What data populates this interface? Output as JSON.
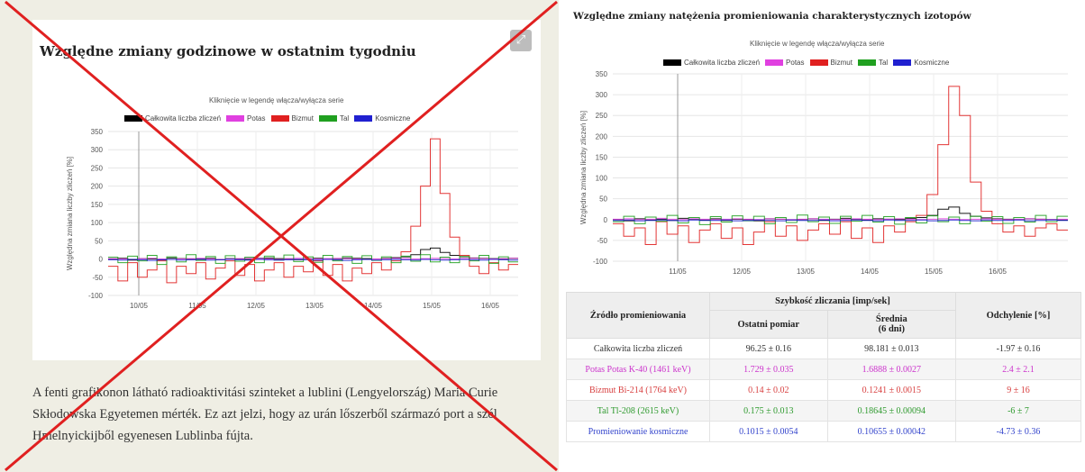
{
  "left": {
    "title": "Względne zmiany godzinowe w ostatnim tygodniu",
    "expand_icon": "expand-icon",
    "caption": "A fenti grafikonon látható radioaktivitási szinteket a lublini (Lengyelország) Maria Curie Skłodowska Egyetemen mérték. Ez azt jelzi, hogy az urán lőszerből származó port a szél Hmelnyickijből egyenesen Lublinba fújta.",
    "overlay": "red-x-cross"
  },
  "right": {
    "title": "Względne zmiany natężenia promieniowania charakterystycznych izotopów"
  },
  "chart_data": [
    {
      "type": "line",
      "title": "",
      "subtitle": "Kliknięcie w legendę włącza/wyłącza serie",
      "ylabel": "Względna zmiana liczby zliczeń [%]",
      "xlabel": "",
      "ylim": [
        -100,
        350
      ],
      "yticks": [
        "350",
        "300",
        "250",
        "200",
        "150",
        "100",
        "50",
        "0",
        "-50",
        "-100"
      ],
      "x_ticks": [
        "10/05",
        "11/05",
        "12/05",
        "13/05",
        "14/05",
        "15/05",
        "16/05"
      ],
      "legend_position": "top",
      "grid": true,
      "series": [
        {
          "name": "Całkowita liczba zliczeń",
          "color": "#000000",
          "values": [
            0,
            2,
            -3,
            1,
            0,
            -2,
            3,
            1,
            -1,
            0,
            2,
            -2,
            1,
            0,
            -1,
            2,
            3,
            1,
            0,
            -2,
            1,
            2,
            0,
            -1,
            3,
            2,
            1,
            0,
            2,
            4,
            6,
            12,
            26,
            30,
            18,
            10,
            6,
            3,
            2,
            1,
            0,
            2
          ]
        },
        {
          "name": "Potas",
          "color": "#e040e0",
          "values": [
            1,
            0,
            -1,
            1,
            2,
            0,
            -1,
            0,
            1,
            2,
            0,
            -1,
            0,
            1,
            2,
            1,
            0,
            -1,
            1,
            2,
            1,
            0,
            1,
            2,
            1,
            0,
            -1,
            0,
            1,
            2,
            1,
            0,
            1,
            2,
            1,
            0,
            1,
            2,
            1,
            0,
            1,
            2
          ]
        },
        {
          "name": "Bizmut",
          "color": "#e02020",
          "values": [
            -20,
            -60,
            -10,
            -50,
            -30,
            -5,
            -65,
            -20,
            -40,
            -10,
            -55,
            -25,
            -5,
            -45,
            -15,
            -60,
            -30,
            -10,
            -50,
            -20,
            -35,
            -5,
            -45,
            -15,
            -60,
            -25,
            -40,
            -10,
            -30,
            -5,
            20,
            90,
            200,
            330,
            180,
            60,
            10,
            -20,
            -40,
            -10,
            -30,
            -15
          ]
        },
        {
          "name": "Tal",
          "color": "#20a020",
          "values": [
            5,
            -10,
            8,
            -5,
            10,
            -15,
            6,
            -8,
            12,
            -4,
            7,
            -12,
            9,
            -6,
            5,
            -10,
            8,
            -3,
            11,
            -7,
            6,
            -9,
            10,
            -5,
            7,
            -12,
            9,
            -4,
            6,
            -10,
            8,
            -6,
            12,
            -8,
            5,
            -10,
            7,
            -5,
            10,
            -12,
            6,
            -8
          ]
        },
        {
          "name": "Kosmiczne",
          "color": "#2020d0",
          "values": [
            -2,
            -3,
            -1,
            -2,
            -4,
            -2,
            -1,
            -3,
            -2,
            -1,
            -3,
            -2,
            -1,
            -2,
            -3,
            -1,
            -2,
            -3,
            -2,
            -1,
            -2,
            -3,
            -1,
            -2,
            -4,
            -2,
            -1,
            -3,
            -2,
            -1,
            -2,
            -3,
            -1,
            -2,
            -3,
            -2,
            -1,
            -2,
            -3,
            -1,
            -2,
            -3
          ]
        }
      ]
    },
    {
      "type": "line",
      "title": "",
      "subtitle": "Kliknięcie w legendę włącza/wyłącza serie",
      "ylabel": "Względna zmiana liczby zliczeń [%]",
      "xlabel": "",
      "ylim": [
        -100,
        350
      ],
      "yticks": [
        "350",
        "300",
        "250",
        "200",
        "150",
        "100",
        "50",
        "0",
        "-50",
        "-100"
      ],
      "x_ticks": [
        "11/05",
        "12/05",
        "13/05",
        "14/05",
        "15/05",
        "16/05"
      ],
      "legend_position": "top",
      "grid": true,
      "series": [
        {
          "name": "Całkowita liczba zliczeń",
          "color": "#000000",
          "values": [
            0,
            -3,
            2,
            -1,
            1,
            -2,
            3,
            0,
            -1,
            2,
            -2,
            1,
            0,
            -3,
            2,
            1,
            -1,
            0,
            2,
            -2,
            1,
            3,
            0,
            -1,
            2,
            1,
            0,
            3,
            5,
            10,
            25,
            30,
            15,
            8,
            4,
            2,
            1,
            0,
            2,
            1,
            0,
            -1
          ]
        },
        {
          "name": "Potas",
          "color": "#e040e0",
          "values": [
            1,
            2,
            0,
            1,
            3,
            1,
            0,
            2,
            1,
            0,
            1,
            2,
            1,
            0,
            2,
            1,
            0,
            1,
            2,
            1,
            0,
            1,
            2,
            1,
            0,
            1,
            2,
            1,
            0,
            1,
            2,
            1,
            0,
            1,
            2,
            1,
            0,
            1,
            2,
            1,
            0,
            1
          ]
        },
        {
          "name": "Bizmut",
          "color": "#e02020",
          "values": [
            -10,
            -40,
            -20,
            -60,
            -5,
            -35,
            -15,
            -55,
            -25,
            -10,
            -45,
            -20,
            -60,
            -30,
            -5,
            -40,
            -15,
            -50,
            -25,
            -10,
            -35,
            -5,
            -45,
            -20,
            -55,
            -15,
            -30,
            -5,
            10,
            60,
            180,
            320,
            250,
            90,
            20,
            -10,
            -30,
            -15,
            -40,
            -20,
            -10,
            -25
          ]
        },
        {
          "name": "Tal",
          "color": "#20a020",
          "values": [
            -5,
            8,
            -10,
            6,
            -4,
            10,
            -8,
            5,
            -12,
            7,
            -6,
            9,
            -3,
            8,
            -10,
            5,
            -7,
            11,
            -5,
            6,
            -9,
            8,
            -4,
            10,
            -6,
            7,
            -11,
            5,
            -8,
            9,
            -5,
            6,
            -10,
            8,
            -4,
            7,
            -9,
            5,
            -6,
            10,
            -5,
            8
          ]
        },
        {
          "name": "Kosmiczne",
          "color": "#2020d0",
          "values": [
            -2,
            -1,
            -3,
            -2,
            -1,
            -2,
            -3,
            -1,
            -2,
            -2,
            -1,
            -3,
            -2,
            -1,
            -2,
            -3,
            -1,
            -2,
            -2,
            -1,
            -3,
            -2,
            -1,
            -2,
            -3,
            -1,
            -2,
            -2,
            -1,
            -3,
            -2,
            -1,
            -2,
            -3,
            -1,
            -2,
            -2,
            -1,
            -3,
            -2,
            -1,
            -2
          ]
        }
      ]
    }
  ],
  "table": {
    "header_source": "Źródło promieniowania",
    "header_rate": "Szybkość zliczania [imp/sek]",
    "header_last": "Ostatni pomiar",
    "header_avg": "Średnia",
    "header_avg2": "(6 dni)",
    "header_dev": "Odchylenie [%]",
    "rows": [
      {
        "source": "Całkowita liczba zliczeń",
        "last": "96.25 ± 0.16",
        "avg": "98.181 ± 0.013",
        "dev": "-1.97 ± 0.16",
        "color": "#333333"
      },
      {
        "source": "Potas Potas K-40 (1461 keV)",
        "last": "1.729 ± 0.035",
        "avg": "1.6888 ± 0.0027",
        "dev": "2.4 ± 2.1",
        "color": "#cc33cc"
      },
      {
        "source": "Bizmut Bi-214 (1764 keV)",
        "last": "0.14 ± 0.02",
        "avg": "0.1241 ± 0.0015",
        "dev": "9 ± 16",
        "color": "#d84040"
      },
      {
        "source": "Tal Tl-208 (2615 keV)",
        "last": "0.175 ± 0.013",
        "avg": "0.18645 ± 0.00094",
        "dev": "-6 ± 7",
        "color": "#2e9a2e"
      },
      {
        "source": "Promieniowanie kosmiczne",
        "last": "0.1015 ± 0.0054",
        "avg": "0.10655 ± 0.00042",
        "dev": "-4.73 ± 0.36",
        "color": "#3344cc"
      }
    ]
  }
}
